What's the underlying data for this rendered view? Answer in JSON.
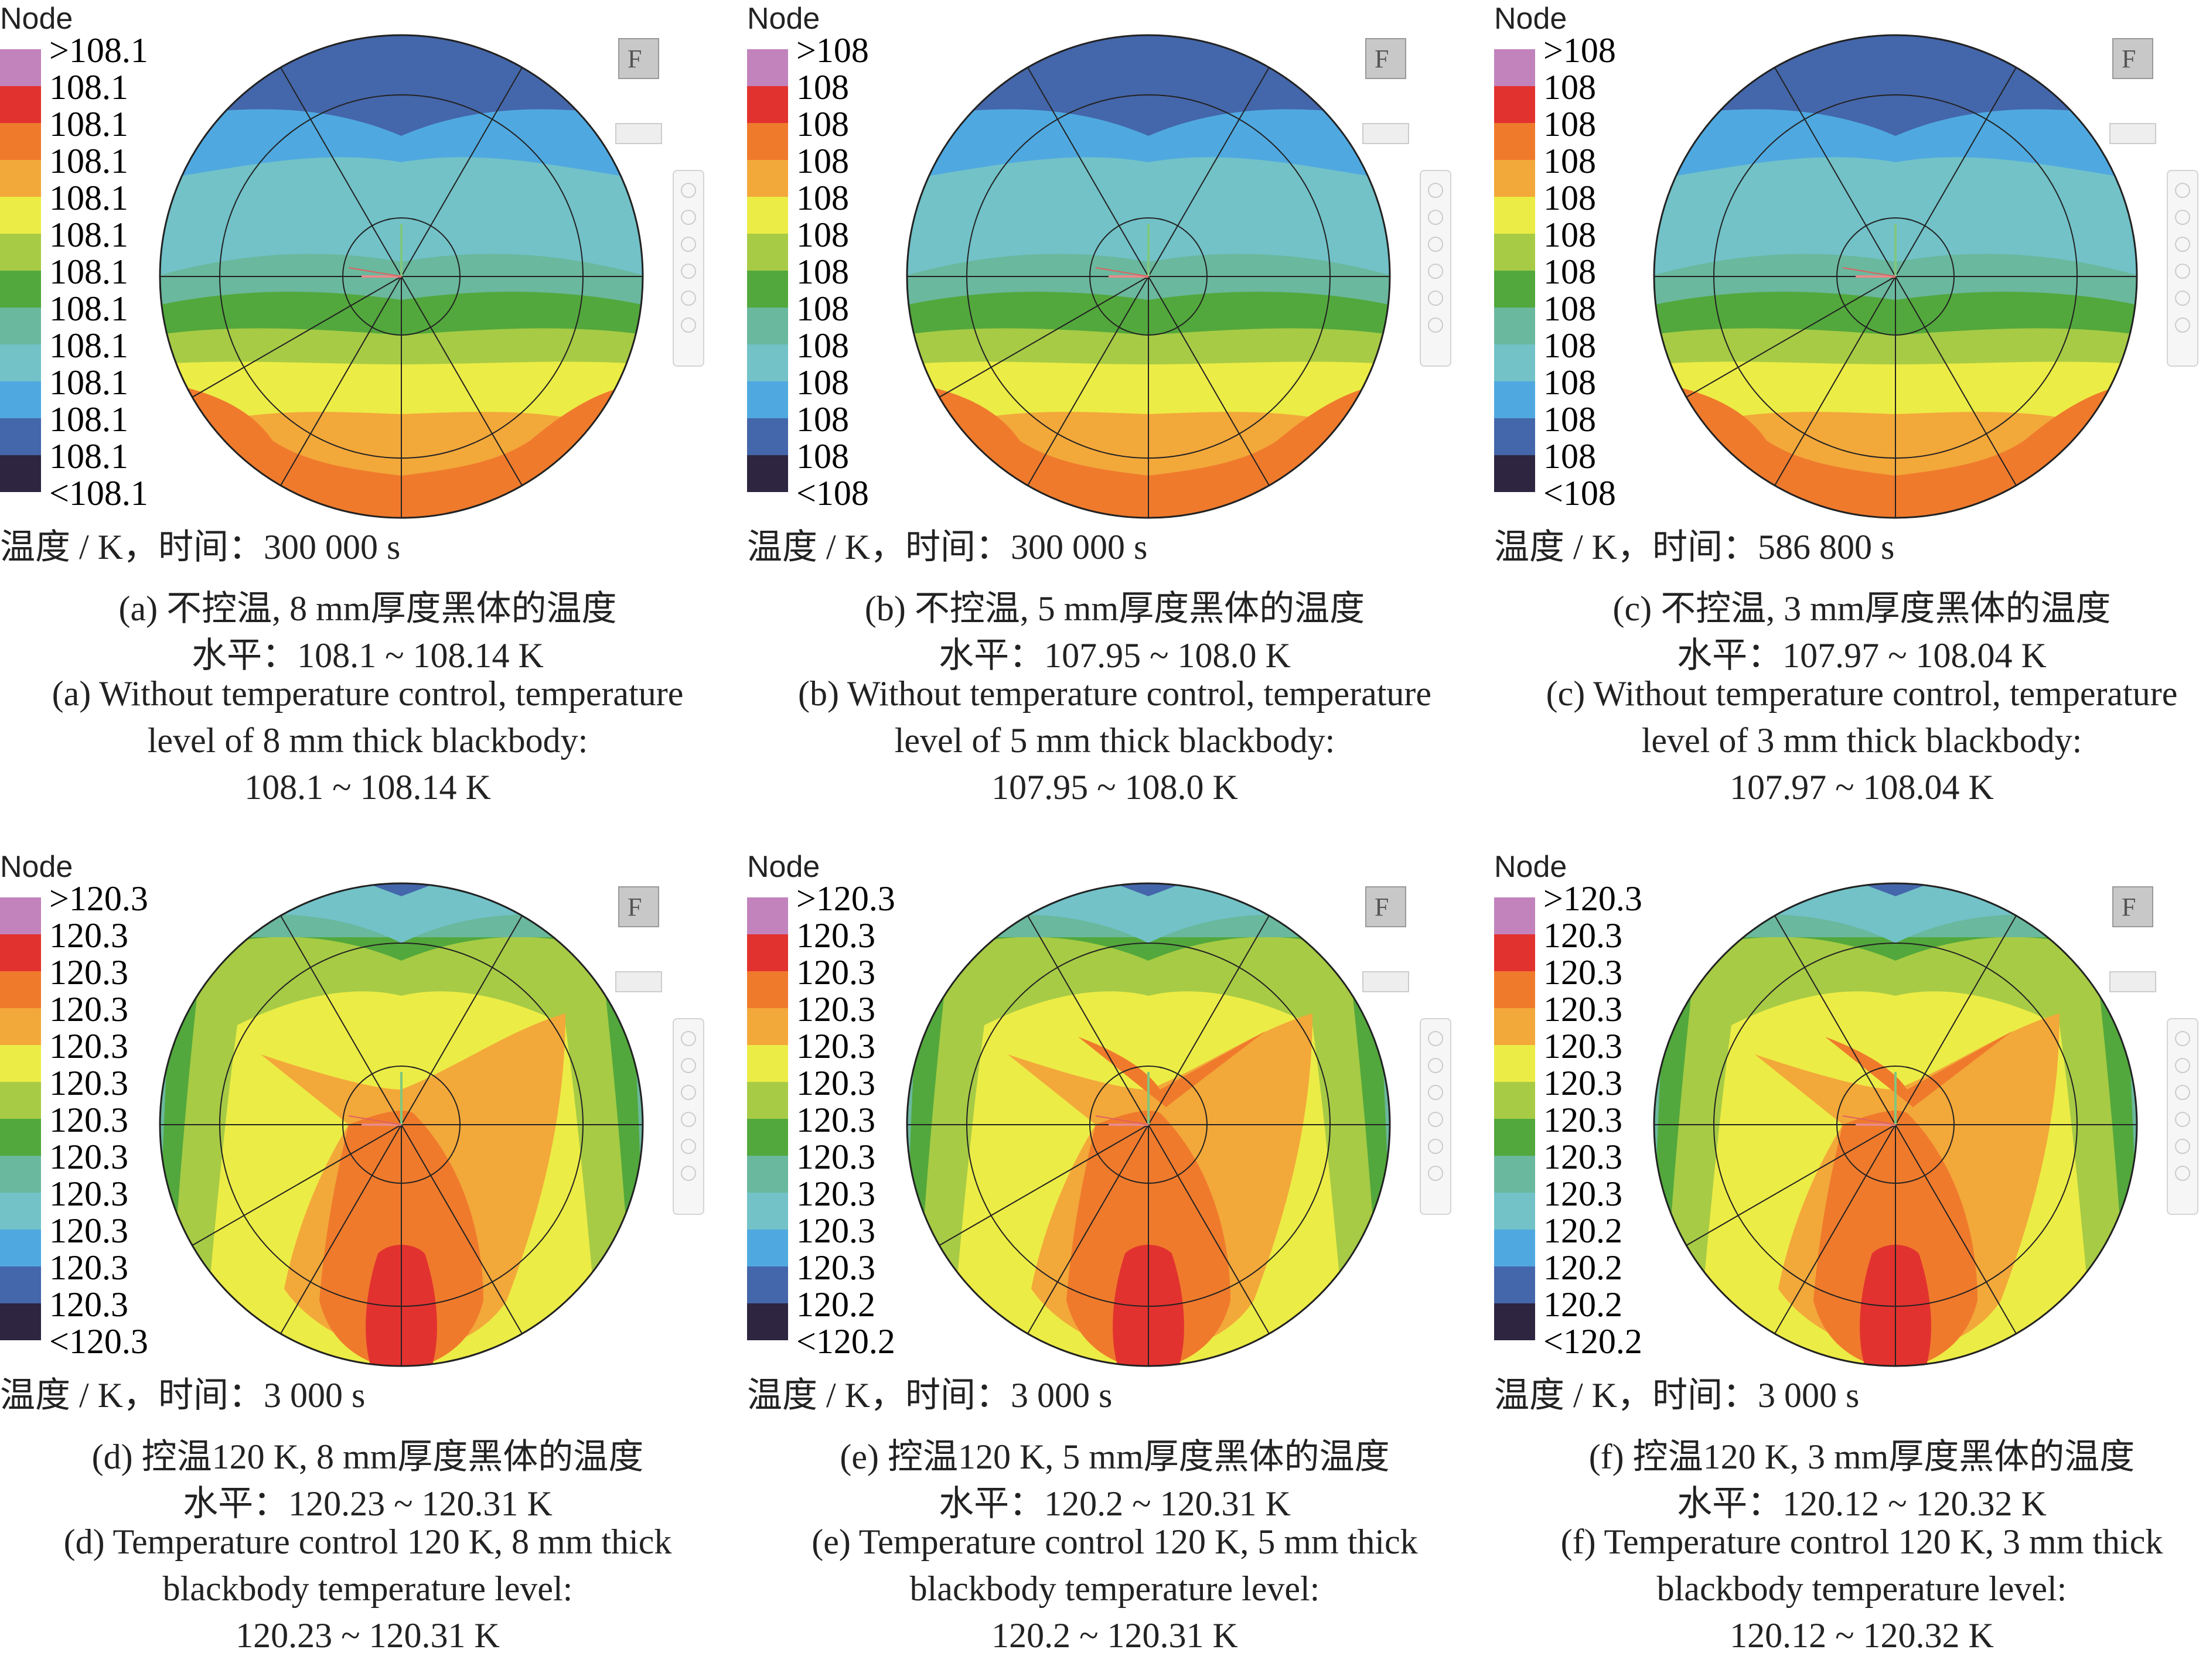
{
  "info_prefix": "温度 / K，时间：",
  "colors": [
    "#c283bd",
    "#e2322f",
    "#ef7a2c",
    "#f3a83a",
    "#ecec46",
    "#a7cb45",
    "#52a83c",
    "#6ab89d",
    "#72c2c8",
    "#4fa9e0",
    "#4466aa",
    "#2e2540"
  ],
  "panels": [
    {
      "node": "Node",
      "legend": [
        ">108.1",
        "108.1",
        "108.1",
        "108.1",
        "108.1",
        "108.1",
        "108.1",
        "108.1",
        "108.1",
        "108.1",
        "108.1",
        "108.1",
        "<108.1"
      ],
      "time": "300 000 s",
      "caption_cn": "(a) 不控温, 8 mm厚度黑体的温度",
      "level_cn": "水平：108.1 ~ 108.14 K",
      "caption_en_1": "(a) Without temperature control, temperature",
      "caption_en_2": "level of 8 mm thick blackbody:",
      "caption_en_3": "108.1 ~ 108.14 K",
      "field": "A"
    },
    {
      "node": "Node",
      "legend": [
        ">108",
        "108",
        "108",
        "108",
        "108",
        "108",
        "108",
        "108",
        "108",
        "108",
        "108",
        "108",
        "<108"
      ],
      "time": "300 000 s",
      "caption_cn": "(b) 不控温, 5 mm厚度黑体的温度",
      "level_cn": "水平：107.95 ~ 108.0 K",
      "caption_en_1": "(b) Without temperature control, temperature",
      "caption_en_2": "level of 5 mm thick blackbody:",
      "caption_en_3": "107.95 ~ 108.0 K",
      "field": "A"
    },
    {
      "node": "Node",
      "legend": [
        ">108",
        "108",
        "108",
        "108",
        "108",
        "108",
        "108",
        "108",
        "108",
        "108",
        "108",
        "108",
        "<108"
      ],
      "time": "586 800 s",
      "caption_cn": "(c) 不控温, 3 mm厚度黑体的温度",
      "level_cn": "水平：107.97 ~ 108.04 K",
      "caption_en_1": "(c) Without temperature control, temperature",
      "caption_en_2": "level of 3 mm thick blackbody:",
      "caption_en_3": "107.97 ~ 108.04 K",
      "field": "A"
    },
    {
      "node": "Node",
      "legend": [
        ">120.3",
        "120.3",
        "120.3",
        "120.3",
        "120.3",
        "120.3",
        "120.3",
        "120.3",
        "120.3",
        "120.3",
        "120.3",
        "120.3",
        "<120.3"
      ],
      "time": "3 000 s",
      "caption_cn": "(d) 控温120 K, 8 mm厚度黑体的温度",
      "level_cn": "水平：120.23 ~ 120.31 K",
      "caption_en_1": "(d) Temperature control 120 K, 8 mm thick",
      "caption_en_2": "blackbody temperature level:",
      "caption_en_3": "120.23 ~ 120.31 K",
      "field": "B"
    },
    {
      "node": "Node",
      "legend": [
        ">120.3",
        "120.3",
        "120.3",
        "120.3",
        "120.3",
        "120.3",
        "120.3",
        "120.3",
        "120.3",
        "120.3",
        "120.3",
        "120.2",
        "<120.2"
      ],
      "time": "3 000 s",
      "caption_cn": "(e) 控温120 K, 5 mm厚度黑体的温度",
      "level_cn": "水平：120.2 ~ 120.31 K",
      "caption_en_1": "(e) Temperature control 120 K, 5 mm thick",
      "caption_en_2": "blackbody temperature level:",
      "caption_en_3": "120.2 ~ 120.31 K",
      "field": "B"
    },
    {
      "node": "Node",
      "legend": [
        ">120.3",
        "120.3",
        "120.3",
        "120.3",
        "120.3",
        "120.3",
        "120.3",
        "120.3",
        "120.3",
        "120.2",
        "120.2",
        "120.2",
        "<120.2"
      ],
      "time": "3 000 s",
      "caption_cn": "(f) 控温120 K, 3 mm厚度黑体的温度",
      "level_cn": "水平：120.12 ~ 120.32 K",
      "caption_en_1": "(f) Temperature control 120 K, 3 mm thick",
      "caption_en_2": "blackbody temperature level:",
      "caption_en_3": "120.12 ~ 120.32 K",
      "field": "B"
    }
  ]
}
